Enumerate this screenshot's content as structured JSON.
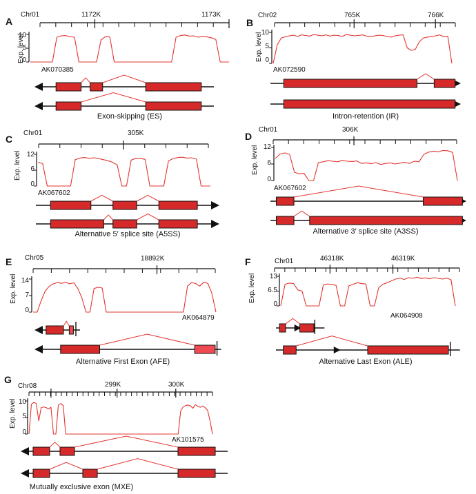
{
  "colors": {
    "exon": "#d62a2a",
    "exon_light": "#ef4a52",
    "coverage": "#e3342f",
    "splice": "#e3342f",
    "line": "#111111"
  },
  "panels": [
    {
      "letter": "A",
      "chr": "Chr01",
      "positions": [
        "1172K",
        "1173K"
      ],
      "ylabel": "Exp. level",
      "yticks": [
        "10",
        "5",
        "0"
      ],
      "accession": "AK070385",
      "caption": "Exon-skipping (ES)",
      "direction": "left",
      "coverage": [
        0,
        0,
        0,
        0,
        0,
        0,
        9,
        9.5,
        9.6,
        9.2,
        9,
        0,
        0,
        0,
        0,
        0,
        8,
        9.2,
        9.1,
        0,
        0,
        0,
        0,
        0,
        0,
        0,
        0,
        0,
        0,
        0,
        0,
        0,
        0,
        9,
        9.6,
        9.8,
        9.4,
        9.5,
        9,
        9.3,
        9.1,
        8.8,
        8.2,
        0,
        0,
        0
      ],
      "iso1_exons": [
        [
          0.12,
          0.26
        ],
        [
          0.31,
          0.38
        ],
        [
          0.62,
          0.93
        ]
      ],
      "iso1_splices": [
        [
          0.26,
          0.31
        ],
        [
          0.38,
          0.62
        ]
      ],
      "iso2_exons": [
        [
          0.12,
          0.26
        ],
        [
          0.62,
          0.93
        ]
      ],
      "iso2_splices": [
        [
          0.26,
          0.62
        ]
      ]
    },
    {
      "letter": "B",
      "chr": "Chr02",
      "positions": [
        "765K",
        "766K"
      ],
      "ylabel": "Exp. level",
      "yticks": [
        "10",
        "5",
        "0"
      ],
      "accession": "AK072590",
      "caption": "Intron-retention (IR)",
      "direction": "right",
      "coverage": [
        0,
        6,
        8.2,
        8.6,
        8.9,
        9.1,
        8.7,
        9.2,
        9,
        8.8,
        9.3,
        9.1,
        8.9,
        9.2,
        8.8,
        9.1,
        9,
        8.7,
        9.3,
        9.1,
        8.9,
        9,
        9.2,
        8.8,
        8.6,
        8.9,
        9.1,
        9,
        8.7,
        8.5,
        8.9,
        9.1,
        9.2,
        5,
        4.2,
        4.5,
        7,
        8.2,
        8.5,
        8.7,
        8.9,
        9.2,
        8.6,
        8.8,
        0
      ],
      "iso1_exons": [
        [
          0.07,
          0.77
        ],
        [
          0.86,
          0.97
        ]
      ],
      "iso1_splices": [
        [
          0.77,
          0.86
        ]
      ],
      "iso2_exons": [
        [
          0.07,
          0.97
        ]
      ],
      "iso2_splices": []
    },
    {
      "letter": "C",
      "chr": "Chr01",
      "positions": [
        "305K"
      ],
      "ylabel": "Exp. level",
      "yticks": [
        "12",
        "6",
        "0"
      ],
      "accession": "AK067602",
      "caption": "Alternative 5′ splice site (A5SS)",
      "direction": "right",
      "coverage": [
        9,
        8.5,
        0,
        0,
        0,
        0,
        0,
        0,
        10,
        10.6,
        10.8,
        10.5,
        10.7,
        10.4,
        10,
        9.6,
        9,
        8,
        0,
        0,
        9.8,
        10.5,
        10.4,
        10.1,
        0,
        0,
        0,
        0,
        9.5,
        10.4,
        10.8,
        10.9,
        10.6,
        10.7,
        10.2,
        0,
        0,
        0
      ],
      "iso1_exons": [
        [
          0.08,
          0.3
        ],
        [
          0.42,
          0.55
        ],
        [
          0.67,
          0.88
        ]
      ],
      "iso1_splices": [
        [
          0.3,
          0.42
        ],
        [
          0.55,
          0.67
        ]
      ],
      "iso2_exons": [
        [
          0.08,
          0.37
        ],
        [
          0.42,
          0.55
        ],
        [
          0.67,
          0.88
        ]
      ],
      "iso2_splices": [
        [
          0.37,
          0.42
        ],
        [
          0.55,
          0.67
        ]
      ]
    },
    {
      "letter": "D",
      "chr": "Chr01",
      "positions": [
        "306K"
      ],
      "ylabel": "Exp. level",
      "yticks": [
        "12",
        "6",
        "0"
      ],
      "accession": "AK067602",
      "caption": "Alternative 3′ splice site (A3SS)",
      "direction": "right",
      "coverage": [
        8,
        9.6,
        10,
        9.5,
        3,
        2.4,
        2.6,
        0,
        0,
        6.5,
        6.8,
        7.2,
        7,
        6.8,
        7.3,
        7,
        6.9,
        7.1,
        6.2,
        6.4,
        6.1,
        6.5,
        5.8,
        6.2,
        6.4,
        6,
        6.3,
        6.6,
        6.2,
        7,
        6.8,
        9.5,
        10.3,
        10.6,
        10.4,
        10.9,
        10.8,
        10.2,
        0
      ],
      "iso1_exons": [
        [
          0.03,
          0.12
        ],
        [
          0.78,
          0.98
        ]
      ],
      "iso1_splices": [
        [
          0.12,
          0.78
        ]
      ],
      "iso2_exons": [
        [
          0.03,
          0.12
        ],
        [
          0.2,
          0.98
        ]
      ],
      "iso2_splices": [
        [
          0.12,
          0.2
        ]
      ]
    },
    {
      "letter": "E",
      "chr": "Chr05",
      "positions": [
        "18892K"
      ],
      "ylabel": "Exp. level",
      "yticks": [
        "14",
        "7",
        "0"
      ],
      "accession": "AK064879",
      "caption": "Alternative First Exon (AFE)",
      "direction": "left",
      "coverage": [
        0,
        0,
        5,
        9,
        11,
        12,
        12.5,
        12.2,
        12.6,
        12,
        12.4,
        10,
        6,
        0,
        0,
        10,
        10.5,
        10.2,
        0,
        0,
        0,
        0,
        0,
        0,
        0,
        0,
        0,
        0,
        0,
        0,
        0,
        0,
        0,
        0,
        0,
        0,
        0,
        0,
        11,
        12.5,
        12.1,
        11,
        12.6,
        12.2,
        8,
        0
      ],
      "iso1_exons": [
        [
          0.14,
          0.35
        ],
        [
          0.42,
          0.47
        ]
      ],
      "iso1_splices": [
        [
          0.35,
          0.42
        ]
      ],
      "iso1_endbar": 0.5,
      "iso2_exons": [
        [
          0.14,
          0.35
        ],
        [
          0.86,
          0.97
        ]
      ],
      "iso2_splices": [
        [
          0.35,
          0.86
        ]
      ],
      "iso2_endbar": 0.98
    },
    {
      "letter": "F",
      "chr": "Chr01",
      "positions": [
        "46318K",
        "46319K"
      ],
      "ylabel": "Exp. level",
      "yticks": [
        "13",
        "6.5",
        "0"
      ],
      "accession": "AK064908",
      "caption": "Alternative Last Exon (ALE)",
      "direction": "right",
      "coverage": [
        0,
        9.5,
        10,
        9.8,
        7,
        6.5,
        0,
        0,
        0,
        0,
        9.2,
        9.6,
        9.4,
        9,
        0,
        0,
        8.8,
        9.5,
        10.2,
        9.8,
        9.6,
        0,
        0,
        8,
        9.5,
        10.2,
        11,
        11.8,
        12.2,
        11.6,
        12.4,
        12.1,
        12.6,
        12,
        12.3,
        11.9,
        12.4,
        12.1,
        11.8,
        12.2,
        11.5,
        0
      ],
      "iso1_exons": [
        [
          0.04,
          0.11
        ],
        [
          0.27,
          0.43
        ]
      ],
      "iso1_splices": [
        [
          0.11,
          0.27
        ]
      ],
      "iso1_endbar": 0.44,
      "iso1_arrow": 0.24,
      "iso2_exons": [
        [
          0.04,
          0.11
        ],
        [
          0.5,
          0.94
        ]
      ],
      "iso2_splices": [
        [
          0.11,
          0.5
        ]
      ],
      "iso2_endbar": 0.95,
      "iso2_arrow": 0.33
    },
    {
      "letter": "G",
      "chr": "Chr08",
      "positions": [
        "299K",
        "300K"
      ],
      "ylabel": "Exp. level",
      "yticks": [
        "10",
        "5",
        "0"
      ],
      "accession": "AK101575",
      "caption": "Mutually exclusive exon (MXE)",
      "direction": "left",
      "coverage": [
        0,
        9,
        9.6,
        9.2,
        4,
        8,
        8.2,
        8,
        7.6,
        8.1,
        0,
        0,
        8.8,
        9.2,
        8.6,
        0,
        0,
        0,
        0,
        0,
        0,
        0,
        0,
        0,
        0,
        0,
        0,
        0,
        0,
        0,
        0,
        0,
        0,
        0,
        0,
        0,
        0,
        0,
        0,
        0,
        0,
        0,
        0,
        0,
        0,
        0,
        0,
        0,
        0,
        0,
        0,
        0,
        0,
        0,
        0,
        0,
        0,
        0,
        0,
        0,
        0,
        0,
        7,
        8.2,
        8.6,
        8.8,
        8.5,
        7.8,
        8.9,
        8.4,
        8.1,
        8.5,
        8,
        7.2,
        4,
        0
      ],
      "iso1_exons": [
        [
          0.06,
          0.14
        ],
        [
          0.19,
          0.26
        ],
        [
          0.76,
          0.94
        ]
      ],
      "iso1_splices": [
        [
          0.14,
          0.19
        ],
        [
          0.26,
          0.76
        ]
      ],
      "iso2_exons": [
        [
          0.06,
          0.14
        ],
        [
          0.3,
          0.37
        ],
        [
          0.76,
          0.94
        ]
      ],
      "iso2_splices": [
        [
          0.14,
          0.3
        ],
        [
          0.37,
          0.76
        ]
      ]
    }
  ]
}
